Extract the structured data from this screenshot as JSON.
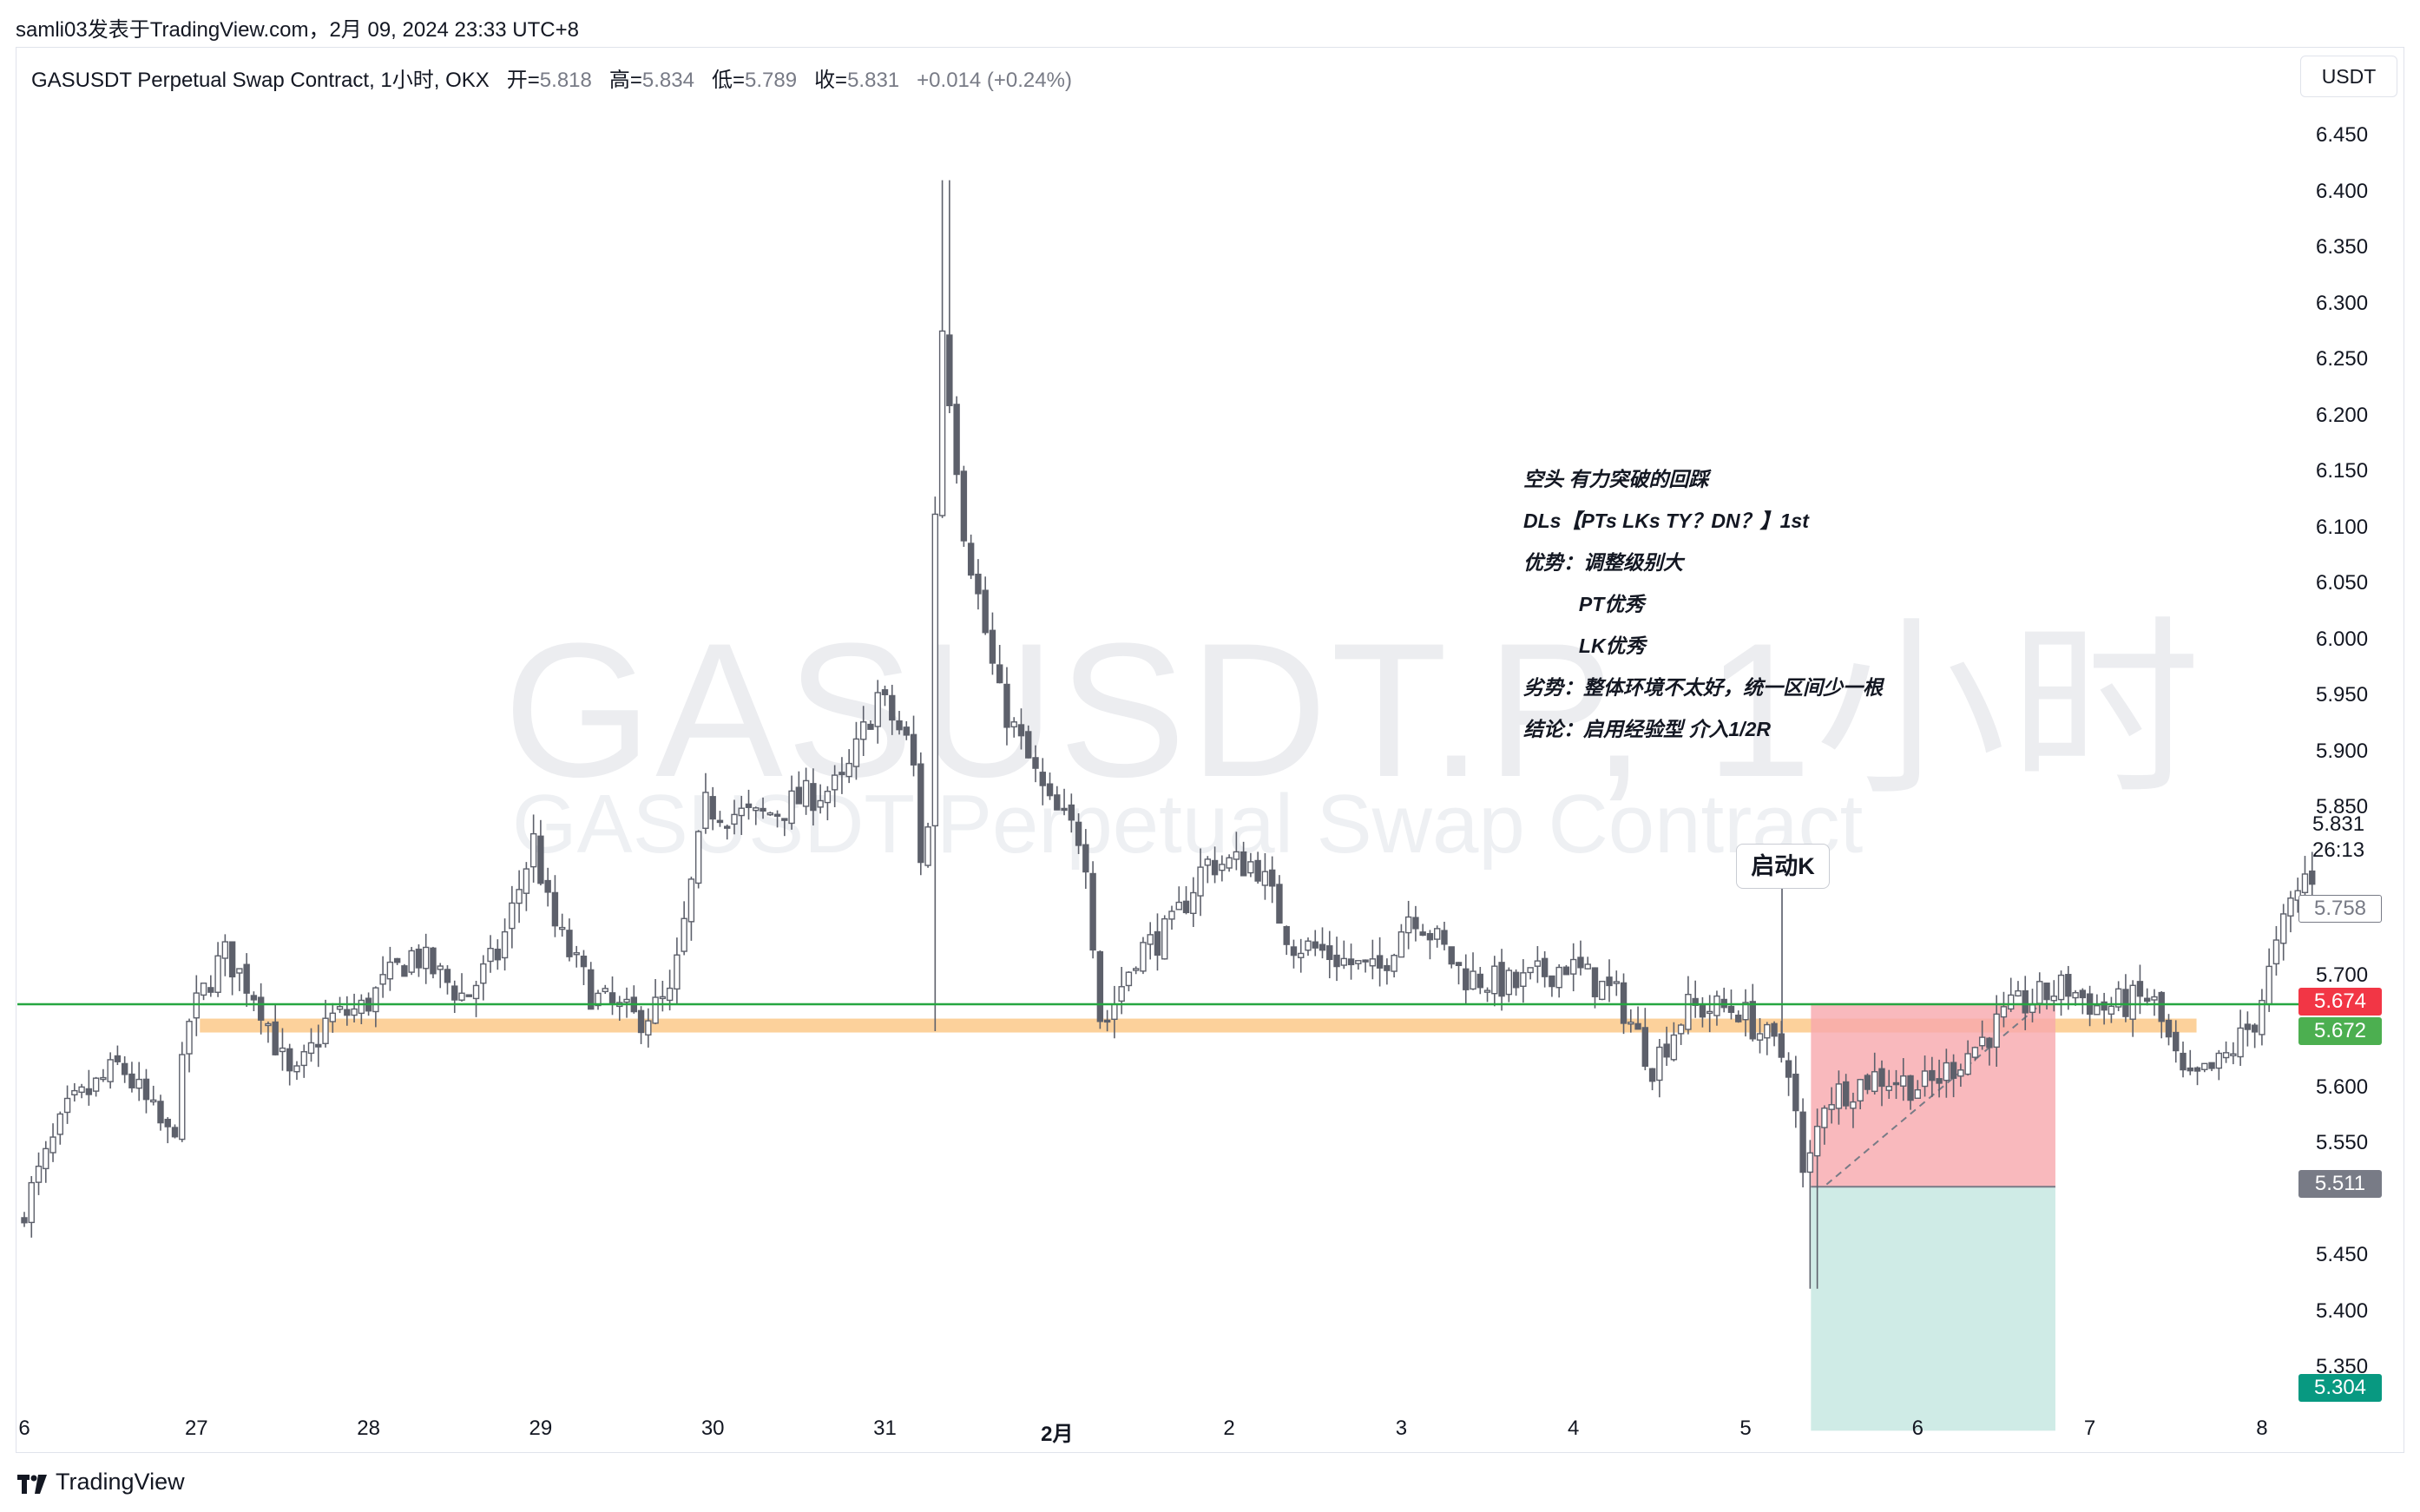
{
  "header": {
    "publish_line": "samli03发表于TradingView.com，2月 09, 2024 23:33 UTC+8"
  },
  "legend": {
    "symbol": "GASUSDT Perpetual Swap Contract, 1小时, OKX",
    "open_label": "开=",
    "open_value": "5.818",
    "high_label": "高=",
    "high_value": "5.834",
    "low_label": "低=",
    "low_value": "5.789",
    "close_label": "收=",
    "close_value": "5.831",
    "change": "+0.014 (+0.24%)"
  },
  "currency_button": "USDT",
  "watermark": {
    "line1": "GASUSDT.P, 1小时",
    "line2": "GASUSDT Perpetual Swap Contract"
  },
  "note": {
    "lines": [
      "空头 有力突破的回踩",
      "DLs【PTs LKs TY？DN？】1st",
      "优势：调整级别大",
      "          PT优秀",
      "          LK优秀",
      "劣势：整体环境不太好，统一区间少一根",
      "结论：启用经验型 介入1/2R"
    ]
  },
  "callout_label": "启动K",
  "price_tags": {
    "last_price": "5.831",
    "countdown": "26:13",
    "crosshair_price": "5.758",
    "stop_price": "5.674",
    "entry_price": "5.672",
    "level_price": "5.511",
    "target_price": "5.304"
  },
  "colors": {
    "up": "#ffffff",
    "down": "#5d606b",
    "wick": "#5d606b",
    "support_line": "#26a641",
    "zone": "#fbc98a",
    "stop_zone": "#f7a7ac",
    "target_zone": "#b6e1d9",
    "stop_tag": "#f23645",
    "entry_tag": "#4caf50",
    "target_tag": "#089981",
    "level_tag": "#787b86"
  },
  "brand": "TradingView",
  "chart_data": {
    "type": "candlestick",
    "timeframe": "1小时",
    "ylim": [
      5.3,
      6.48
    ],
    "y_ticks": [
      "6.450",
      "6.400",
      "6.350",
      "6.300",
      "6.250",
      "6.200",
      "6.150",
      "6.100",
      "6.050",
      "6.000",
      "5.950",
      "5.900",
      "5.850",
      "5.700",
      "5.600",
      "5.550",
      "5.450",
      "5.400",
      "5.350"
    ],
    "x_ticks": [
      "6",
      "27",
      "28",
      "29",
      "30",
      "31",
      "2月",
      "2",
      "3",
      "4",
      "5",
      "6",
      "7",
      "8"
    ],
    "support_level": 5.674,
    "zone_level": 5.655,
    "position": {
      "entry": 5.672,
      "stop": 5.674,
      "stop_top": 5.675,
      "entry_bottom": 5.511,
      "target": 5.304
    },
    "anchor_points": [
      {
        "t": 0,
        "p": 5.48
      },
      {
        "t": 0.3,
        "p": 5.58
      },
      {
        "t": 0.6,
        "p": 5.62
      },
      {
        "t": 0.9,
        "p": 5.55
      },
      {
        "t": 1.0,
        "p": 5.66
      },
      {
        "t": 1.2,
        "p": 5.72
      },
      {
        "t": 1.4,
        "p": 5.68
      },
      {
        "t": 1.6,
        "p": 5.6
      },
      {
        "t": 1.8,
        "p": 5.66
      },
      {
        "t": 2.0,
        "p": 5.67
      },
      {
        "t": 2.3,
        "p": 5.72
      },
      {
        "t": 2.6,
        "p": 5.68
      },
      {
        "t": 2.8,
        "p": 5.72
      },
      {
        "t": 3.0,
        "p": 5.82
      },
      {
        "t": 3.1,
        "p": 5.75
      },
      {
        "t": 3.35,
        "p": 5.68
      },
      {
        "t": 3.6,
        "p": 5.66
      },
      {
        "t": 3.8,
        "p": 5.68
      },
      {
        "t": 4.0,
        "p": 5.85
      },
      {
        "t": 4.3,
        "p": 5.84
      },
      {
        "t": 4.6,
        "p": 5.86
      },
      {
        "t": 4.8,
        "p": 5.87
      },
      {
        "t": 5.0,
        "p": 5.95
      },
      {
        "t": 5.2,
        "p": 5.9
      },
      {
        "t": 5.28,
        "p": 5.75
      },
      {
        "t": 5.36,
        "p": 6.3
      },
      {
        "t": 5.5,
        "p": 6.1
      },
      {
        "t": 5.7,
        "p": 5.95
      },
      {
        "t": 5.85,
        "p": 5.9
      },
      {
        "t": 6.0,
        "p": 5.85
      },
      {
        "t": 6.2,
        "p": 5.82
      },
      {
        "t": 6.3,
        "p": 5.65
      },
      {
        "t": 6.5,
        "p": 5.72
      },
      {
        "t": 6.7,
        "p": 5.74
      },
      {
        "t": 6.9,
        "p": 5.8
      },
      {
        "t": 7.2,
        "p": 5.8
      },
      {
        "t": 7.4,
        "p": 5.73
      },
      {
        "t": 7.6,
        "p": 5.72
      },
      {
        "t": 7.9,
        "p": 5.7
      },
      {
        "t": 8.1,
        "p": 5.76
      },
      {
        "t": 8.4,
        "p": 5.7
      },
      {
        "t": 8.7,
        "p": 5.69
      },
      {
        "t": 9.0,
        "p": 5.71
      },
      {
        "t": 9.3,
        "p": 5.68
      },
      {
        "t": 9.5,
        "p": 5.62
      },
      {
        "t": 9.7,
        "p": 5.67
      },
      {
        "t": 10.0,
        "p": 5.67
      },
      {
        "t": 10.3,
        "p": 5.62
      },
      {
        "t": 10.38,
        "p": 5.51
      },
      {
        "t": 10.5,
        "p": 5.59
      },
      {
        "t": 10.8,
        "p": 5.61
      },
      {
        "t": 11.1,
        "p": 5.6
      },
      {
        "t": 11.4,
        "p": 5.64
      },
      {
        "t": 11.6,
        "p": 5.67
      },
      {
        "t": 11.9,
        "p": 5.69
      },
      {
        "t": 12.1,
        "p": 5.67
      },
      {
        "t": 12.4,
        "p": 5.68
      },
      {
        "t": 12.6,
        "p": 5.6
      },
      {
        "t": 12.8,
        "p": 5.62
      },
      {
        "t": 13.0,
        "p": 5.66
      },
      {
        "t": 13.2,
        "p": 5.76
      },
      {
        "t": 13.3,
        "p": 5.79
      }
    ]
  }
}
